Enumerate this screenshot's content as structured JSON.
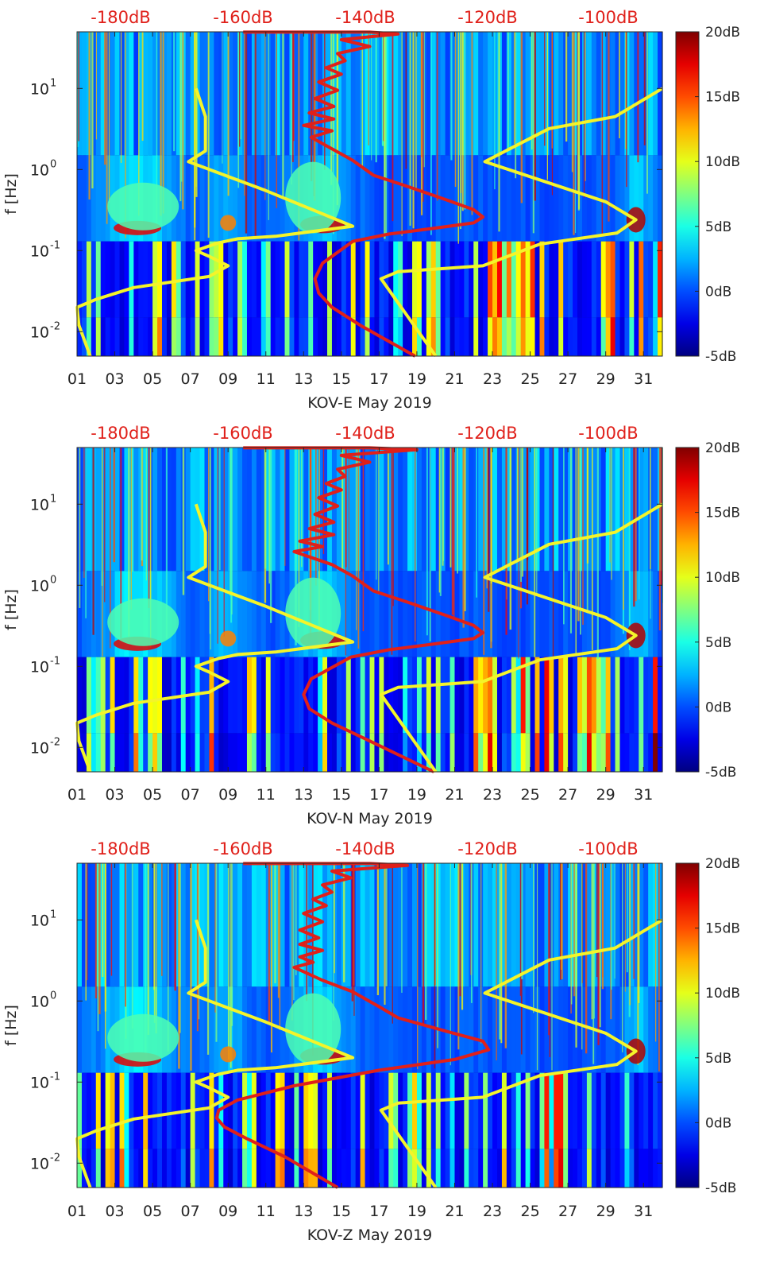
{
  "chart_data": [
    {
      "type": "heatmap",
      "title": "",
      "xlabel": "KOV-E May 2019",
      "ylabel": "f [Hz]",
      "x_ticks": [
        "01",
        "03",
        "05",
        "07",
        "09",
        "11",
        "13",
        "15",
        "17",
        "19",
        "21",
        "23",
        "25",
        "27",
        "29",
        "31"
      ],
      "y_ticks": [
        {
          "value": 10,
          "base": "10",
          "exp": "1"
        },
        {
          "value": 1,
          "base": "10",
          "exp": "0"
        },
        {
          "value": 0.1,
          "base": "10",
          "exp": "-1"
        },
        {
          "value": 0.01,
          "base": "10",
          "exp": "-2"
        }
      ],
      "xlim": [
        1,
        32
      ],
      "ylim": [
        0.005,
        50
      ],
      "top_axis_labels": [
        "-180dB",
        "-160dB",
        "-140dB",
        "-120dB",
        "-100dB"
      ],
      "colorbar": {
        "ticks": [
          "20dB",
          "15dB",
          "10dB",
          "5dB",
          "0dB",
          "-5dB"
        ],
        "range": [
          -5,
          20
        ]
      },
      "series": [
        {
          "name": "red-noise-model",
          "color": "#e0201a",
          "day": [
            18.9,
            16.0,
            14.5,
            13.8,
            13.6,
            14.0,
            15.6,
            17.5,
            20.0,
            22.0,
            22.5,
            22.0,
            20.6,
            18.5,
            16.7,
            15.6,
            14.5,
            13.4,
            14.5,
            13.0,
            14.6,
            13.3,
            14.6,
            13.6,
            14.8,
            13.8,
            15.0,
            14.2,
            15.2,
            14.8,
            16.5,
            15.0,
            18.0,
            16.5,
            9.8
          ],
          "freq": [
            0.005,
            0.012,
            0.02,
            0.03,
            0.045,
            0.07,
            0.13,
            0.16,
            0.19,
            0.22,
            0.26,
            0.32,
            0.42,
            0.62,
            0.85,
            1.3,
            1.8,
            2.5,
            3.0,
            3.5,
            4.2,
            5.0,
            6.0,
            7.5,
            9.5,
            12.0,
            15.0,
            18.0,
            22.0,
            27.0,
            33.0,
            40.0,
            47.0,
            49.5,
            49.5
          ]
        },
        {
          "name": "yellow-noise-model",
          "color": "#f4f42a",
          "day": [
            1.7,
            1.1,
            1.0,
            2.0,
            4.0,
            8.0,
            9.0,
            8.0,
            7.3,
            8.5,
            9.5,
            11.5,
            15.6,
            11.0,
            6.9,
            7.8,
            7.8,
            7.3
          ],
          "freq": [
            0.005,
            0.012,
            0.02,
            0.025,
            0.035,
            0.048,
            0.065,
            0.085,
            0.1,
            0.125,
            0.14,
            0.15,
            0.2,
            0.55,
            1.25,
            1.7,
            4.5,
            10.0
          ]
        },
        {
          "name": "yellow-noise-model-right",
          "color": "#f4f42a",
          "day": [
            20.0,
            17.1,
            18.0,
            22.5,
            25.5,
            29.6,
            30.6,
            29.0,
            22.6,
            26.0,
            29.5,
            32.0
          ],
          "freq": [
            0.005,
            0.045,
            0.055,
            0.065,
            0.12,
            0.165,
            0.24,
            0.4,
            1.25,
            3.2,
            4.5,
            10.0
          ]
        }
      ]
    },
    {
      "type": "heatmap",
      "title": "",
      "xlabel": "KOV-N May 2019",
      "ylabel": "f [Hz]",
      "x_ticks": [
        "01",
        "03",
        "05",
        "07",
        "09",
        "11",
        "13",
        "15",
        "17",
        "19",
        "21",
        "23",
        "25",
        "27",
        "29",
        "31"
      ],
      "y_ticks": [
        {
          "value": 10,
          "base": "10",
          "exp": "1"
        },
        {
          "value": 1,
          "base": "10",
          "exp": "0"
        },
        {
          "value": 0.1,
          "base": "10",
          "exp": "-1"
        },
        {
          "value": 0.01,
          "base": "10",
          "exp": "-2"
        }
      ],
      "xlim": [
        1,
        32
      ],
      "ylim": [
        0.005,
        50
      ],
      "top_axis_labels": [
        "-180dB",
        "-160dB",
        "-140dB",
        "-120dB",
        "-100dB"
      ],
      "colorbar": {
        "ticks": [
          "20dB",
          "15dB",
          "10dB",
          "5dB",
          "0dB",
          "-5dB"
        ],
        "range": [
          -5,
          20
        ]
      },
      "series": [
        {
          "name": "red-noise-model",
          "color": "#e0201a",
          "day": [
            19.9,
            16.5,
            14.5,
            13.3,
            13.0,
            13.4,
            15.5,
            17.5,
            20.0,
            22.0,
            22.5,
            22.0,
            20.6,
            18.5,
            16.7,
            15.6,
            14.5,
            12.5,
            14.0,
            12.8,
            14.6,
            13.3,
            14.6,
            13.6,
            14.8,
            13.8,
            15.0,
            14.2,
            15.2,
            14.8,
            16.5,
            15.0,
            19.0,
            16.5,
            9.8
          ],
          "freq": [
            0.005,
            0.012,
            0.02,
            0.03,
            0.045,
            0.07,
            0.13,
            0.16,
            0.19,
            0.22,
            0.26,
            0.32,
            0.42,
            0.62,
            0.85,
            1.3,
            1.8,
            2.6,
            3.0,
            3.5,
            4.2,
            5.0,
            6.0,
            7.5,
            9.5,
            12.0,
            15.0,
            18.0,
            22.0,
            27.0,
            33.0,
            40.0,
            47.0,
            49.5,
            49.5
          ]
        },
        {
          "name": "yellow-noise-model",
          "color": "#f4f42a",
          "day": [
            1.7,
            1.1,
            1.0,
            2.0,
            4.0,
            8.0,
            9.0,
            8.0,
            7.3,
            8.5,
            9.5,
            11.5,
            15.6,
            11.0,
            6.9,
            7.8,
            7.8,
            7.3
          ],
          "freq": [
            0.005,
            0.012,
            0.02,
            0.025,
            0.035,
            0.048,
            0.065,
            0.085,
            0.1,
            0.125,
            0.14,
            0.15,
            0.2,
            0.55,
            1.25,
            1.7,
            4.5,
            10.0
          ]
        },
        {
          "name": "yellow-noise-model-right",
          "color": "#f4f42a",
          "day": [
            20.0,
            17.1,
            18.0,
            22.5,
            25.5,
            29.6,
            30.6,
            29.0,
            22.6,
            26.0,
            29.5,
            32.0
          ],
          "freq": [
            0.005,
            0.045,
            0.055,
            0.065,
            0.12,
            0.165,
            0.24,
            0.4,
            1.25,
            3.2,
            4.5,
            10.0
          ]
        }
      ]
    },
    {
      "type": "heatmap",
      "title": "",
      "xlabel": "KOV-Z May 2019",
      "ylabel": "f [Hz]",
      "x_ticks": [
        "01",
        "03",
        "05",
        "07",
        "09",
        "11",
        "13",
        "15",
        "17",
        "19",
        "21",
        "23",
        "25",
        "27",
        "29",
        "31"
      ],
      "y_ticks": [
        {
          "value": 10,
          "base": "10",
          "exp": "1"
        },
        {
          "value": 1,
          "base": "10",
          "exp": "0"
        },
        {
          "value": 0.1,
          "base": "10",
          "exp": "-1"
        },
        {
          "value": 0.01,
          "base": "10",
          "exp": "-2"
        }
      ],
      "xlim": [
        1,
        32
      ],
      "ylim": [
        0.005,
        50
      ],
      "top_axis_labels": [
        "-180dB",
        "-160dB",
        "-140dB",
        "-120dB",
        "-100dB"
      ],
      "colorbar": {
        "ticks": [
          "20dB",
          "15dB",
          "10dB",
          "5dB",
          "0dB",
          "-5dB"
        ],
        "range": [
          -5,
          20
        ]
      },
      "series": [
        {
          "name": "red-noise-model",
          "color": "#e0201a",
          "day": [
            14.8,
            12.0,
            10.0,
            8.8,
            8.4,
            8.5,
            9.5,
            12.5,
            17.0,
            21.0,
            22.8,
            22.5,
            20.6,
            18.0,
            17.0,
            15.6,
            14.0,
            12.5,
            13.5,
            12.8,
            14.0,
            12.8,
            13.8,
            12.8,
            14.0,
            13.0,
            14.2,
            13.5,
            14.5,
            14.0,
            15.5,
            14.5,
            18.5,
            16.5,
            9.8
          ],
          "freq": [
            0.005,
            0.012,
            0.02,
            0.028,
            0.036,
            0.045,
            0.06,
            0.09,
            0.14,
            0.19,
            0.25,
            0.32,
            0.42,
            0.62,
            0.85,
            1.3,
            1.8,
            2.6,
            3.0,
            3.5,
            4.2,
            5.0,
            6.0,
            7.5,
            9.5,
            12.0,
            15.0,
            18.0,
            22.0,
            27.0,
            33.0,
            40.0,
            47.0,
            49.5,
            49.5
          ]
        },
        {
          "name": "yellow-noise-model",
          "color": "#f4f42a",
          "day": [
            1.7,
            1.1,
            1.0,
            2.0,
            4.0,
            8.0,
            9.0,
            8.0,
            7.3,
            8.5,
            9.5,
            11.5,
            15.6,
            11.0,
            6.9,
            7.8,
            7.8,
            7.3
          ],
          "freq": [
            0.005,
            0.012,
            0.02,
            0.025,
            0.035,
            0.048,
            0.065,
            0.085,
            0.1,
            0.125,
            0.14,
            0.15,
            0.2,
            0.55,
            1.25,
            1.7,
            4.5,
            10.0
          ]
        },
        {
          "name": "yellow-noise-model-right",
          "color": "#f4f42a",
          "day": [
            20.0,
            17.1,
            18.0,
            22.5,
            25.5,
            29.6,
            30.6,
            29.0,
            22.6,
            26.0,
            29.5,
            32.0
          ],
          "freq": [
            0.005,
            0.045,
            0.055,
            0.065,
            0.12,
            0.165,
            0.24,
            0.4,
            1.25,
            3.2,
            4.5,
            10.0
          ]
        }
      ]
    }
  ]
}
